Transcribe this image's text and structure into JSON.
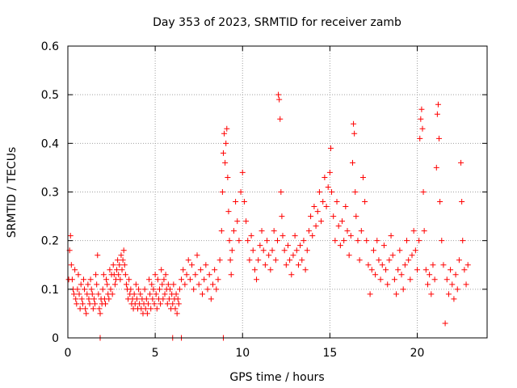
{
  "chart_data": {
    "type": "scatter",
    "title": "Day 353 of 2023, SRMTID for receiver zamb",
    "xlabel": "GPS time / hours",
    "ylabel": "SRMTID / TECUs",
    "xlim": [
      0,
      24
    ],
    "ylim": [
      0,
      0.6
    ],
    "xticks": [
      0,
      5,
      10,
      15,
      20
    ],
    "xtick_labels": [
      "0",
      "5",
      "10",
      "15",
      "20"
    ],
    "yticks": [
      0,
      0.1,
      0.2,
      0.3,
      0.4,
      0.5,
      0.6
    ],
    "ytick_labels": [
      "0",
      "0.1",
      "0.2",
      "0.3",
      "0.4",
      "0.5",
      "0.6"
    ],
    "grid": true,
    "marker": "+",
    "color": "#ff0000",
    "series": [
      {
        "name": "SRMTID",
        "points": [
          [
            0.05,
            0.12
          ],
          [
            0.1,
            0.18
          ],
          [
            0.15,
            0.21
          ],
          [
            0.2,
            0.15
          ],
          [
            0.25,
            0.12
          ],
          [
            0.3,
            0.1
          ],
          [
            0.35,
            0.09
          ],
          [
            0.4,
            0.14
          ],
          [
            0.45,
            0.08
          ],
          [
            0.5,
            0.07
          ],
          [
            0.55,
            0.1
          ],
          [
            0.6,
            0.13
          ],
          [
            0.65,
            0.09
          ],
          [
            0.7,
            0.06
          ],
          [
            0.75,
            0.11
          ],
          [
            0.8,
            0.08
          ],
          [
            0.85,
            0.07
          ],
          [
            0.9,
            0.12
          ],
          [
            0.95,
            0.1
          ],
          [
            1.0,
            0.06
          ],
          [
            1.05,
            0.05
          ],
          [
            1.1,
            0.09
          ],
          [
            1.15,
            0.11
          ],
          [
            1.2,
            0.08
          ],
          [
            1.25,
            0.07
          ],
          [
            1.3,
            0.12
          ],
          [
            1.35,
            0.1
          ],
          [
            1.4,
            0.09
          ],
          [
            1.45,
            0.06
          ],
          [
            1.5,
            0.08
          ],
          [
            1.55,
            0.07
          ],
          [
            1.6,
            0.13
          ],
          [
            1.65,
            0.11
          ],
          [
            1.7,
            0.17
          ],
          [
            1.75,
            0.09
          ],
          [
            1.8,
            0.06
          ],
          [
            1.85,
            0.05
          ],
          [
            1.9,
            0.08
          ],
          [
            1.95,
            0.07
          ],
          [
            2.0,
            0.1
          ],
          [
            2.05,
            0.13
          ],
          [
            2.1,
            0.08
          ],
          [
            2.15,
            0.07
          ],
          [
            2.2,
            0.12
          ],
          [
            2.25,
            0.11
          ],
          [
            2.3,
            0.09
          ],
          [
            2.35,
            0.08
          ],
          [
            2.4,
            0.14
          ],
          [
            2.45,
            0.1
          ],
          [
            2.5,
            0.13
          ],
          [
            2.55,
            0.09
          ],
          [
            2.6,
            0.15
          ],
          [
            2.65,
            0.13
          ],
          [
            2.7,
            0.11
          ],
          [
            2.75,
            0.12
          ],
          [
            2.8,
            0.14
          ],
          [
            2.85,
            0.16
          ],
          [
            2.9,
            0.13
          ],
          [
            2.95,
            0.15
          ],
          [
            3.0,
            0.12
          ],
          [
            3.05,
            0.17
          ],
          [
            3.1,
            0.14
          ],
          [
            3.15,
            0.16
          ],
          [
            3.2,
            0.18
          ],
          [
            3.25,
            0.15
          ],
          [
            3.3,
            0.13
          ],
          [
            3.35,
            0.11
          ],
          [
            3.4,
            0.1
          ],
          [
            3.45,
            0.08
          ],
          [
            3.5,
            0.12
          ],
          [
            3.55,
            0.09
          ],
          [
            3.6,
            0.1
          ],
          [
            3.65,
            0.07
          ],
          [
            3.7,
            0.08
          ],
          [
            3.75,
            0.06
          ],
          [
            3.8,
            0.09
          ],
          [
            3.85,
            0.07
          ],
          [
            3.9,
            0.11
          ],
          [
            3.95,
            0.08
          ],
          [
            4.0,
            0.06
          ],
          [
            4.05,
            0.1
          ],
          [
            4.1,
            0.07
          ],
          [
            4.15,
            0.09
          ],
          [
            4.2,
            0.06
          ],
          [
            4.25,
            0.08
          ],
          [
            4.3,
            0.05
          ],
          [
            4.35,
            0.07
          ],
          [
            4.4,
            0.1
          ],
          [
            4.45,
            0.06
          ],
          [
            4.5,
            0.08
          ],
          [
            4.55,
            0.05
          ],
          [
            4.6,
            0.07
          ],
          [
            4.65,
            0.12
          ],
          [
            4.7,
            0.09
          ],
          [
            4.75,
            0.06
          ],
          [
            4.8,
            0.11
          ],
          [
            4.85,
            0.08
          ],
          [
            4.9,
            0.1
          ],
          [
            4.95,
            0.07
          ],
          [
            5.0,
            0.13
          ],
          [
            5.05,
            0.09
          ],
          [
            5.1,
            0.06
          ],
          [
            5.15,
            0.12
          ],
          [
            5.2,
            0.08
          ],
          [
            5.25,
            0.1
          ],
          [
            5.3,
            0.07
          ],
          [
            5.35,
            0.14
          ],
          [
            5.4,
            0.11
          ],
          [
            5.45,
            0.08
          ],
          [
            5.5,
            0.12
          ],
          [
            5.55,
            0.09
          ],
          [
            5.6,
            0.13
          ],
          [
            5.65,
            0.1
          ],
          [
            5.7,
            0.07
          ],
          [
            5.75,
            0.11
          ],
          [
            5.8,
            0.08
          ],
          [
            5.85,
            0.1
          ],
          [
            5.9,
            0.06
          ],
          [
            5.95,
            0.09
          ],
          [
            6.0,
            0.07
          ],
          [
            6.05,
            0.11
          ],
          [
            6.1,
            0.08
          ],
          [
            6.15,
            0.06
          ],
          [
            6.2,
            0.09
          ],
          [
            6.25,
            0.05
          ],
          [
            6.3,
            0.08
          ],
          [
            6.35,
            0.07
          ],
          [
            6.4,
            0.1
          ],
          [
            6.5,
            0.12
          ],
          [
            6.6,
            0.14
          ],
          [
            6.7,
            0.11
          ],
          [
            6.8,
            0.13
          ],
          [
            6.9,
            0.16
          ],
          [
            7.0,
            0.12
          ],
          [
            7.1,
            0.15
          ],
          [
            7.2,
            0.1
          ],
          [
            7.3,
            0.13
          ],
          [
            7.4,
            0.17
          ],
          [
            7.5,
            0.11
          ],
          [
            7.6,
            0.14
          ],
          [
            7.7,
            0.09
          ],
          [
            7.8,
            0.12
          ],
          [
            7.9,
            0.15
          ],
          [
            8.0,
            0.1
          ],
          [
            8.1,
            0.13
          ],
          [
            8.2,
            0.08
          ],
          [
            8.3,
            0.11
          ],
          [
            8.4,
            0.14
          ],
          [
            8.5,
            0.1
          ],
          [
            8.6,
            0.12
          ],
          [
            8.7,
            0.16
          ],
          [
            8.8,
            0.22
          ],
          [
            8.85,
            0.3
          ],
          [
            8.9,
            0.38
          ],
          [
            8.95,
            0.42
          ],
          [
            9.0,
            0.36
          ],
          [
            9.05,
            0.4
          ],
          [
            9.1,
            0.43
          ],
          [
            9.15,
            0.33
          ],
          [
            9.2,
            0.26
          ],
          [
            9.25,
            0.2
          ],
          [
            9.3,
            0.16
          ],
          [
            9.35,
            0.13
          ],
          [
            9.4,
            0.18
          ],
          [
            9.5,
            0.22
          ],
          [
            9.6,
            0.28
          ],
          [
            9.7,
            0.24
          ],
          [
            9.8,
            0.2
          ],
          [
            9.9,
            0.3
          ],
          [
            10.0,
            0.34
          ],
          [
            10.1,
            0.28
          ],
          [
            10.2,
            0.24
          ],
          [
            10.3,
            0.2
          ],
          [
            10.4,
            0.16
          ],
          [
            10.5,
            0.21
          ],
          [
            10.6,
            0.18
          ],
          [
            10.7,
            0.14
          ],
          [
            10.8,
            0.12
          ],
          [
            10.9,
            0.16
          ],
          [
            11.0,
            0.19
          ],
          [
            11.1,
            0.22
          ],
          [
            11.2,
            0.18
          ],
          [
            11.3,
            0.15
          ],
          [
            11.4,
            0.2
          ],
          [
            11.5,
            0.17
          ],
          [
            11.6,
            0.14
          ],
          [
            11.7,
            0.18
          ],
          [
            11.8,
            0.22
          ],
          [
            11.9,
            0.16
          ],
          [
            12.0,
            0.2
          ],
          [
            12.05,
            0.5
          ],
          [
            12.1,
            0.49
          ],
          [
            12.15,
            0.45
          ],
          [
            12.2,
            0.3
          ],
          [
            12.25,
            0.25
          ],
          [
            12.3,
            0.21
          ],
          [
            12.4,
            0.18
          ],
          [
            12.5,
            0.15
          ],
          [
            12.6,
            0.19
          ],
          [
            12.7,
            0.16
          ],
          [
            12.8,
            0.13
          ],
          [
            12.9,
            0.17
          ],
          [
            13.0,
            0.21
          ],
          [
            13.1,
            0.18
          ],
          [
            13.2,
            0.15
          ],
          [
            13.3,
            0.19
          ],
          [
            13.4,
            0.16
          ],
          [
            13.5,
            0.2
          ],
          [
            13.6,
            0.14
          ],
          [
            13.7,
            0.18
          ],
          [
            13.8,
            0.22
          ],
          [
            13.9,
            0.25
          ],
          [
            14.0,
            0.21
          ],
          [
            14.1,
            0.27
          ],
          [
            14.2,
            0.23
          ],
          [
            14.3,
            0.26
          ],
          [
            14.4,
            0.3
          ],
          [
            14.5,
            0.24
          ],
          [
            14.6,
            0.28
          ],
          [
            14.7,
            0.33
          ],
          [
            14.8,
            0.27
          ],
          [
            14.9,
            0.31
          ],
          [
            15.0,
            0.34
          ],
          [
            15.05,
            0.39
          ],
          [
            15.1,
            0.3
          ],
          [
            15.2,
            0.25
          ],
          [
            15.3,
            0.2
          ],
          [
            15.4,
            0.28
          ],
          [
            15.5,
            0.23
          ],
          [
            15.6,
            0.19
          ],
          [
            15.7,
            0.24
          ],
          [
            15.8,
            0.2
          ],
          [
            15.9,
            0.27
          ],
          [
            16.0,
            0.22
          ],
          [
            16.1,
            0.17
          ],
          [
            16.2,
            0.21
          ],
          [
            16.3,
            0.36
          ],
          [
            16.35,
            0.44
          ],
          [
            16.4,
            0.42
          ],
          [
            16.45,
            0.3
          ],
          [
            16.5,
            0.25
          ],
          [
            16.6,
            0.2
          ],
          [
            16.7,
            0.16
          ],
          [
            16.8,
            0.22
          ],
          [
            16.9,
            0.33
          ],
          [
            17.0,
            0.28
          ],
          [
            17.1,
            0.2
          ],
          [
            17.2,
            0.15
          ],
          [
            17.3,
            0.09
          ],
          [
            17.4,
            0.14
          ],
          [
            17.5,
            0.18
          ],
          [
            17.6,
            0.13
          ],
          [
            17.7,
            0.2
          ],
          [
            17.8,
            0.16
          ],
          [
            17.9,
            0.12
          ],
          [
            18.0,
            0.15
          ],
          [
            18.1,
            0.19
          ],
          [
            18.2,
            0.14
          ],
          [
            18.3,
            0.11
          ],
          [
            18.4,
            0.16
          ],
          [
            18.5,
            0.21
          ],
          [
            18.6,
            0.17
          ],
          [
            18.7,
            0.12
          ],
          [
            18.8,
            0.09
          ],
          [
            18.9,
            0.14
          ],
          [
            19.0,
            0.18
          ],
          [
            19.1,
            0.13
          ],
          [
            19.2,
            0.1
          ],
          [
            19.3,
            0.15
          ],
          [
            19.4,
            0.2
          ],
          [
            19.5,
            0.16
          ],
          [
            19.6,
            0.12
          ],
          [
            19.7,
            0.17
          ],
          [
            19.8,
            0.22
          ],
          [
            19.9,
            0.18
          ],
          [
            20.0,
            0.14
          ],
          [
            20.1,
            0.2
          ],
          [
            20.15,
            0.41
          ],
          [
            20.2,
            0.45
          ],
          [
            20.25,
            0.47
          ],
          [
            20.3,
            0.43
          ],
          [
            20.35,
            0.3
          ],
          [
            20.4,
            0.22
          ],
          [
            20.5,
            0.14
          ],
          [
            20.6,
            0.11
          ],
          [
            20.7,
            0.13
          ],
          [
            20.8,
            0.09
          ],
          [
            20.9,
            0.15
          ],
          [
            21.0,
            0.12
          ],
          [
            21.1,
            0.35
          ],
          [
            21.15,
            0.46
          ],
          [
            21.2,
            0.48
          ],
          [
            21.25,
            0.41
          ],
          [
            21.3,
            0.28
          ],
          [
            21.4,
            0.2
          ],
          [
            21.5,
            0.15
          ],
          [
            21.6,
            0.03
          ],
          [
            21.7,
            0.12
          ],
          [
            21.8,
            0.09
          ],
          [
            21.9,
            0.14
          ],
          [
            22.0,
            0.11
          ],
          [
            22.1,
            0.08
          ],
          [
            22.2,
            0.13
          ],
          [
            22.3,
            0.1
          ],
          [
            22.4,
            0.16
          ],
          [
            22.5,
            0.36
          ],
          [
            22.55,
            0.28
          ],
          [
            22.6,
            0.2
          ],
          [
            22.7,
            0.14
          ],
          [
            22.8,
            0.11
          ],
          [
            22.9,
            0.15
          ],
          [
            1.85,
            0.0
          ],
          [
            6.0,
            0.0
          ],
          [
            6.5,
            0.0
          ],
          [
            8.9,
            0.0
          ]
        ]
      }
    ]
  }
}
